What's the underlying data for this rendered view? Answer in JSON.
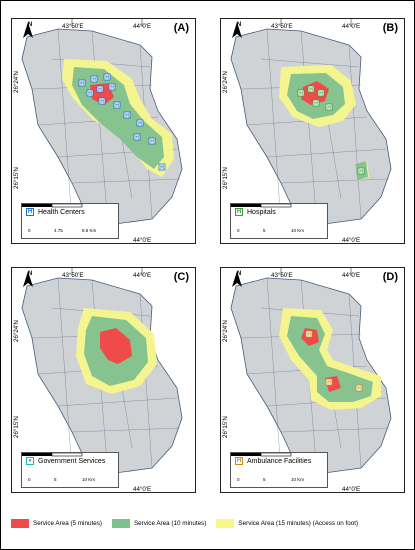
{
  "panels": [
    {
      "letter": "(A)",
      "legend_label": "Health Centers",
      "icon_glyph": "H",
      "icon_color": "#1f6fd1",
      "lat_top": "26°24'N",
      "lat_bottom": "26°15'N",
      "lon_left": "43°50'E",
      "lon_right": "44°0'E",
      "scale": [
        "0",
        "4.75",
        "9.5 Km"
      ],
      "bottom_lon": "44°0'E"
    },
    {
      "letter": "(B)",
      "legend_label": "Hospitals",
      "icon_glyph": "H",
      "icon_color": "#3a9e3a",
      "lat_top": "26°24'N",
      "lat_bottom": "26°15'N",
      "lon_left": "43°50'E",
      "lon_right": "44°0'E",
      "scale": [
        "0",
        "5",
        "10 Km"
      ],
      "bottom_lon": "44°0'E"
    },
    {
      "letter": "(C)",
      "legend_label": "Government Services",
      "icon_glyph": "●",
      "icon_color": "#2ab3b3",
      "lat_top": "26°24'N",
      "lat_bottom": "26°15'N",
      "lon_left": "43°50'E",
      "lon_right": "44°0'E",
      "scale": [
        "0",
        "5",
        "10 Km"
      ],
      "bottom_lon": "44°0'E"
    },
    {
      "letter": "(D)",
      "legend_label": "Ambulance Facilities",
      "icon_glyph": "H",
      "icon_color": "#c98a1a",
      "lat_top": "26°24'N",
      "lat_bottom": "26°15'N",
      "lon_left": "43°50'E",
      "lon_right": "44°0'E",
      "scale": [
        "0",
        "5",
        "10 Km"
      ],
      "bottom_lon": "44°0'E"
    }
  ],
  "north_label": "N",
  "legend": {
    "five": "Service Area (5 minutes)",
    "ten": "Service Area (10 minutes)",
    "fifteen": "Service Area (15 minutes) (Access on foot)"
  },
  "colors": {
    "five": "#f04b4b",
    "ten": "#7fc08f",
    "fifteen": "#f7f78a",
    "region": "#d0d3d6",
    "boundary": "#4a5a7a"
  }
}
